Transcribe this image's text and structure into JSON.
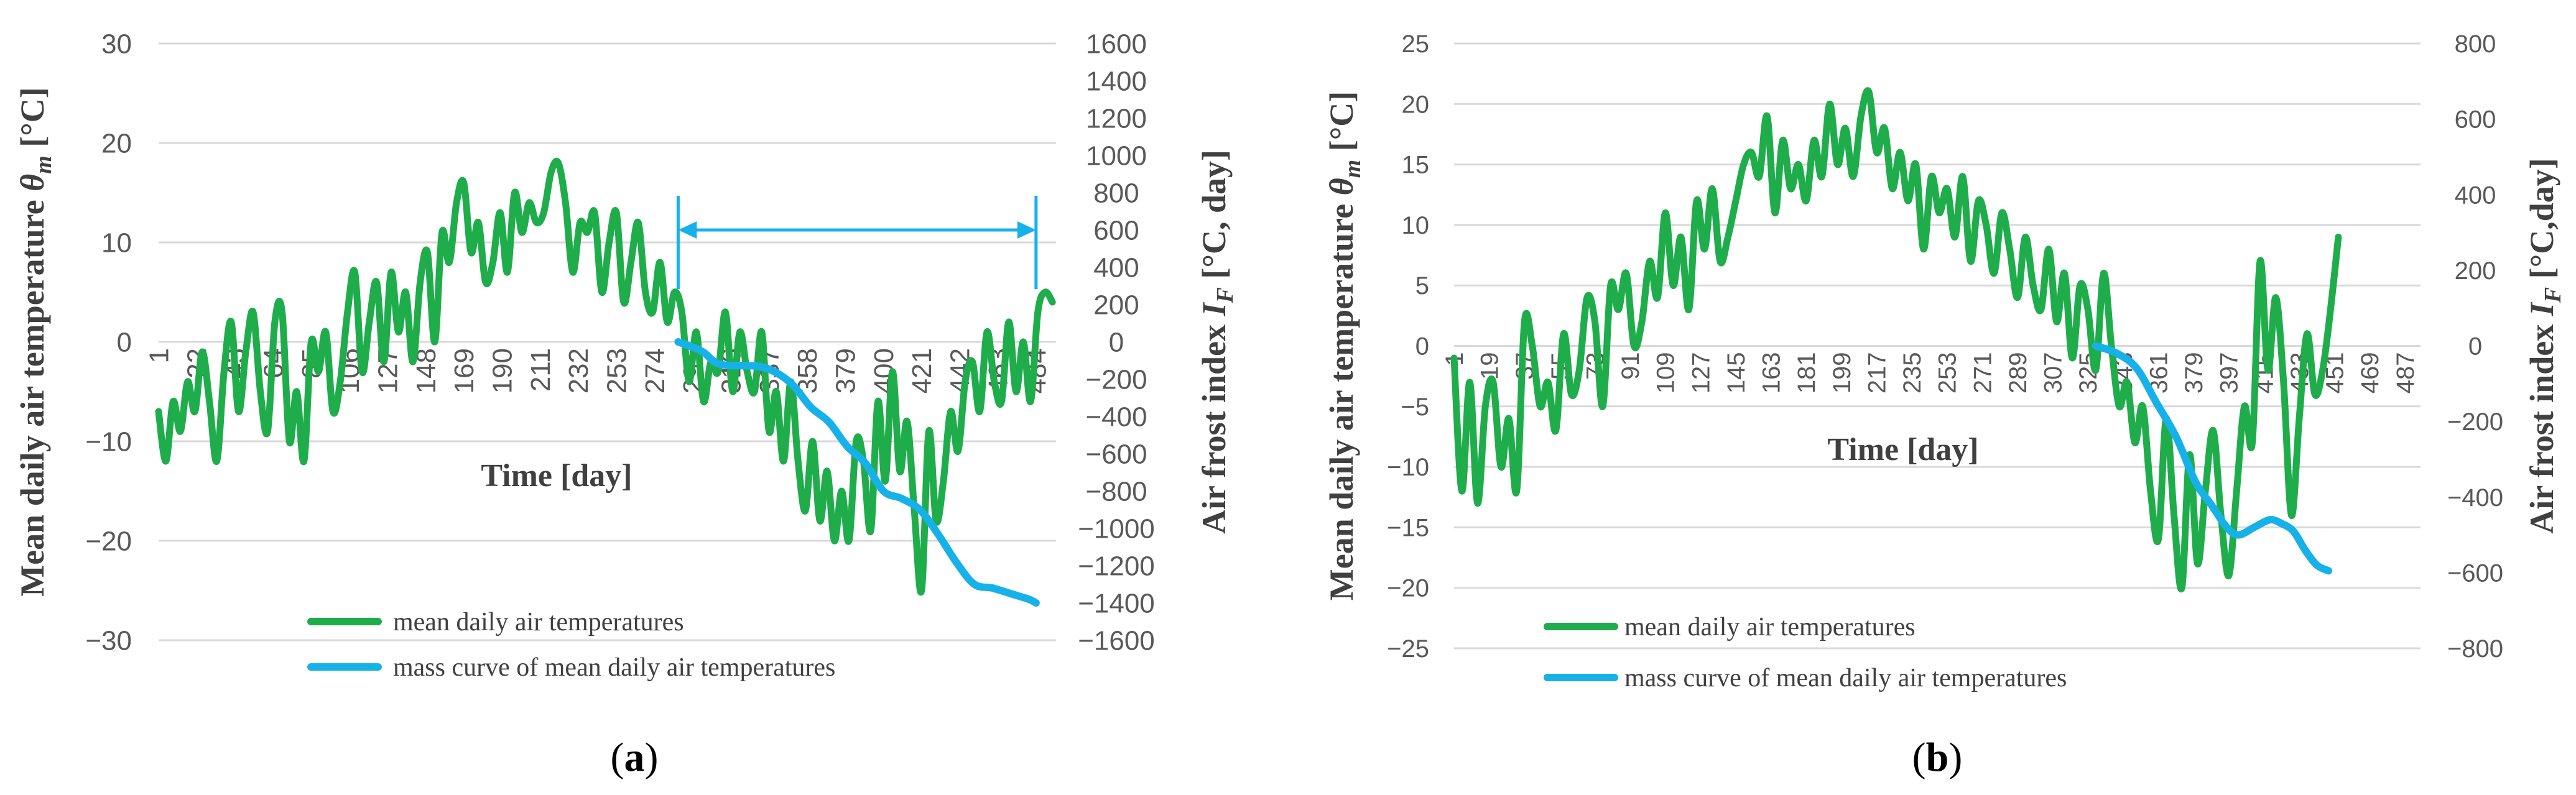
{
  "chart_data": [
    {
      "panel_label_open": "(",
      "panel_label": "a",
      "panel_label_close": ")",
      "type": "line",
      "xlabel": "Time [day]",
      "ylabel_left": {
        "prefix": "Mean daily air temperature ",
        "symbol": "θ",
        "subscript": "m",
        "suffix": " [°C]"
      },
      "ylabel_right": {
        "prefix": "Air frost index ",
        "symbol": "I",
        "subscript": "F",
        "suffix": " [°C, day]"
      },
      "ylim_left": [
        -30,
        30
      ],
      "yticks_left": [
        -30,
        -20,
        -10,
        0,
        10,
        20,
        30
      ],
      "ylim_right": [
        -1600,
        1600
      ],
      "yticks_right": [
        -1600,
        -1400,
        -1200,
        -1000,
        -800,
        -600,
        -400,
        -200,
        0,
        200,
        400,
        600,
        800,
        1000,
        1200,
        1400,
        1600
      ],
      "xlim": [
        1,
        495
      ],
      "xticks": [
        1,
        22,
        43,
        64,
        85,
        106,
        127,
        148,
        169,
        190,
        211,
        232,
        253,
        274,
        295,
        316,
        337,
        358,
        379,
        400,
        421,
        442,
        463,
        484
      ],
      "grid": true,
      "legend": {
        "position": "bottom-center",
        "entries": [
          "mean daily air temperatures",
          "mass curve of mean daily air temperatures"
        ]
      },
      "annotation": "double-headed arrow spanning frost period (day 287 to day 484)",
      "arrow_span": [
        287,
        484
      ],
      "arrow_y_right": 600,
      "series": [
        {
          "name": "mean daily air temperatures",
          "color": "#1fad4b",
          "axis": "left",
          "knots_x": [
            1,
            5,
            9,
            13,
            17,
            21,
            25,
            29,
            33,
            37,
            41,
            45,
            49,
            53,
            57,
            61,
            65,
            69,
            73,
            77,
            81,
            85,
            89,
            93,
            97,
            101,
            105,
            109,
            113,
            117,
            121,
            125,
            129,
            133,
            137,
            141,
            145,
            149,
            153,
            157,
            161,
            165,
            169,
            173,
            177,
            181,
            185,
            189,
            193,
            197,
            201,
            205,
            209,
            213,
            217,
            221,
            225,
            229,
            233,
            237,
            241,
            245,
            249,
            253,
            257,
            261,
            265,
            269,
            273,
            277,
            281,
            285,
            289,
            293,
            297,
            301,
            305,
            309,
            313,
            317,
            321,
            325,
            329,
            333,
            337,
            341,
            345,
            349,
            353,
            357,
            361,
            365,
            369,
            373,
            377,
            381,
            385,
            389,
            393,
            397,
            401,
            405,
            409,
            413,
            417,
            421,
            425,
            429,
            433,
            437,
            441,
            445,
            449,
            453,
            457,
            461,
            465,
            469,
            473,
            477,
            481,
            485,
            489,
            493
          ],
          "knots_y": [
            -7,
            -12,
            -6,
            -9,
            -4,
            -7,
            -1,
            -6,
            -12,
            -3,
            2,
            -7,
            -1,
            3,
            -5,
            -9,
            2,
            3,
            -10,
            -5,
            -12,
            0,
            -3,
            1,
            -7,
            -4,
            3,
            7,
            -3,
            2,
            6,
            -2,
            7,
            1,
            5,
            -2,
            6,
            9,
            0,
            11,
            8,
            14,
            16,
            9,
            12,
            6,
            8,
            13,
            7,
            15,
            11,
            14,
            12,
            13,
            17,
            18,
            14,
            7,
            12,
            11,
            13,
            5,
            10,
            13,
            4,
            8,
            12,
            5,
            3,
            8,
            2,
            5,
            3,
            -4,
            1,
            -6,
            -2,
            -3,
            3,
            -5,
            1,
            -3,
            -5,
            1,
            -9,
            -5,
            -12,
            -4,
            -12,
            -17,
            -10,
            -18,
            -13,
            -20,
            -15,
            -20,
            -10,
            -12,
            -19,
            -6,
            -14,
            -3,
            -13,
            -8,
            -17,
            -25,
            -9,
            -18,
            -14,
            -7,
            -11,
            -4,
            -2,
            -7,
            1,
            -4,
            -6,
            2,
            -5,
            0,
            -6,
            3,
            5,
            4
          ]
        },
        {
          "name": "mass curve of mean daily air temperatures",
          "color": "#17b1ea",
          "axis": "right",
          "knots_x": [
            287,
            300,
            310,
            330,
            340,
            350,
            360,
            370,
            380,
            390,
            400,
            410,
            420,
            430,
            440,
            450,
            460,
            470,
            480,
            484
          ],
          "knots_y": [
            0,
            -50,
            -120,
            -130,
            -160,
            -230,
            -350,
            -430,
            -560,
            -650,
            -800,
            -840,
            -900,
            -1030,
            -1180,
            -1300,
            -1320,
            -1350,
            -1380,
            -1400
          ]
        }
      ]
    },
    {
      "panel_label_open": "(",
      "panel_label": "b",
      "panel_label_close": ")",
      "type": "line",
      "xlabel": "Time [day]",
      "ylabel_left": {
        "prefix": "Mean daily air temperature ",
        "symbol": "θ",
        "subscript": "m",
        "suffix": " [°C]"
      },
      "ylabel_right": {
        "prefix": "Air frost index ",
        "symbol": "I",
        "subscript": "F",
        "suffix": " [°C,day]"
      },
      "ylim_left": [
        -25,
        25
      ],
      "yticks_left": [
        -25,
        -20,
        -15,
        -10,
        -5,
        0,
        5,
        10,
        15,
        20,
        25
      ],
      "ylim_right": [
        -800,
        800
      ],
      "yticks_right": [
        -800,
        -600,
        -400,
        -200,
        0,
        200,
        400,
        600,
        800
      ],
      "xlim": [
        1,
        495
      ],
      "xticks": [
        1,
        19,
        37,
        55,
        73,
        91,
        109,
        127,
        145,
        163,
        181,
        199,
        217,
        235,
        253,
        271,
        289,
        307,
        325,
        343,
        361,
        379,
        397,
        415,
        433,
        451,
        469,
        487
      ],
      "grid": true,
      "legend": {
        "position": "bottom-center",
        "entries": [
          "mean daily air temperatures",
          "mass curve of mean daily air temperatures"
        ]
      },
      "series": [
        {
          "name": "mean daily air temperatures",
          "color": "#1fad4b",
          "axis": "left",
          "knots_x": [
            1,
            5,
            9,
            13,
            17,
            21,
            25,
            29,
            33,
            37,
            41,
            45,
            49,
            53,
            57,
            61,
            65,
            69,
            73,
            77,
            81,
            85,
            89,
            93,
            97,
            101,
            105,
            109,
            113,
            117,
            121,
            125,
            129,
            133,
            137,
            141,
            145,
            149,
            153,
            157,
            161,
            165,
            169,
            173,
            177,
            181,
            185,
            189,
            193,
            197,
            201,
            205,
            209,
            213,
            217,
            221,
            225,
            229,
            233,
            237,
            241,
            245,
            249,
            253,
            257,
            261,
            265,
            269,
            273,
            277,
            281,
            285,
            289,
            293,
            297,
            301,
            305,
            309,
            313,
            317,
            321,
            325,
            329,
            333,
            337,
            341,
            345,
            349,
            353,
            357,
            361,
            365,
            369,
            373,
            377,
            381,
            385,
            389,
            393,
            397,
            401,
            405,
            409,
            413,
            417,
            421,
            425,
            429,
            433,
            437,
            441,
            445,
            449,
            453
          ],
          "knots_y": [
            -1,
            -12,
            -3,
            -13,
            -5,
            -3,
            -10,
            -6,
            -12,
            2,
            0,
            -5,
            -3,
            -7,
            1,
            -4,
            -2,
            4,
            2,
            -5,
            5,
            3,
            6,
            0,
            2,
            7,
            4,
            11,
            5,
            9,
            3,
            12,
            8,
            13,
            7,
            9,
            12,
            15,
            16,
            14,
            19,
            11,
            17,
            13,
            15,
            12,
            17,
            14,
            20,
            15,
            18,
            14,
            19,
            21,
            16,
            18,
            13,
            16,
            12,
            15,
            8,
            14,
            11,
            13,
            9,
            14,
            7,
            12,
            10,
            6,
            11,
            8,
            4,
            9,
            5,
            3,
            8,
            2,
            6,
            -1,
            5,
            3,
            -2,
            6,
            0,
            -5,
            -3,
            -8,
            -5,
            -12,
            -16,
            -6,
            -14,
            -20,
            -9,
            -18,
            -12,
            -7,
            -14,
            -19,
            -12,
            -5,
            -8,
            7,
            -2,
            4,
            -3,
            -14,
            -6,
            1,
            -4,
            -2,
            3,
            9
          ]
        },
        {
          "name": "mass curve of mean daily air temperatures",
          "color": "#17b1ea",
          "axis": "right",
          "knots_x": [
            329,
            340,
            350,
            360,
            370,
            380,
            388,
            396,
            402,
            410,
            418,
            424,
            430,
            436,
            442,
            448
          ],
          "knots_y": [
            0,
            -20,
            -60,
            -150,
            -240,
            -360,
            -420,
            -480,
            -500,
            -480,
            -460,
            -470,
            -490,
            -540,
            -580,
            -595
          ]
        }
      ]
    }
  ]
}
